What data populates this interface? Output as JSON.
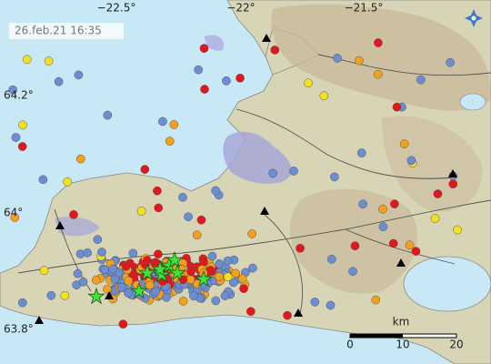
{
  "timestamp": "26.feb.21 16:35",
  "longitude_labels": [
    "−22.5°",
    "−22°",
    "−21.5°"
  ],
  "latitude_labels": [
    "64.2°",
    "64°",
    "63.8°"
  ],
  "scale_bar": {
    "unit": "km",
    "ticks": [
      "0",
      "10",
      "20"
    ]
  }
}
